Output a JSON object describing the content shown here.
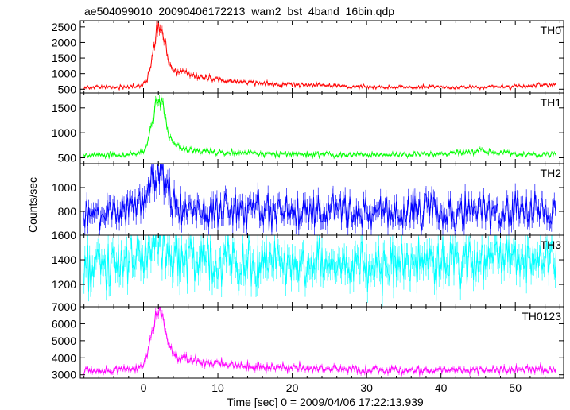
{
  "chart_data": {
    "type": "line",
    "title": "ae504099010_20090406172213_wam2_bst_4band_16bin.qdp",
    "xlabel": "Time [sec] 0 = 2009/04/06 17:22:13.939",
    "ylabel": "Counts/sec",
    "xlim": [
      -8.5,
      56.5
    ],
    "x_ticks": [
      0,
      10,
      20,
      30,
      40,
      50
    ],
    "grid": false,
    "panels": [
      {
        "name": "TH0",
        "color": "#ff0000",
        "ylim": [
          380,
          2700
        ],
        "y_ticks": [
          500,
          1000,
          1500,
          2000,
          2500
        ],
        "y_tick_labels": [
          "500",
          "1000",
          "1500",
          "2000",
          "2500"
        ],
        "x": [
          -8,
          -6,
          -4,
          -2,
          -1,
          0,
          0.5,
          1,
          1.5,
          2,
          2.5,
          3,
          3.5,
          4,
          5,
          6,
          8,
          10,
          13,
          16,
          20,
          25,
          30,
          35,
          40,
          45,
          50,
          54,
          55.5
        ],
        "y": [
          560,
          560,
          570,
          575,
          580,
          640,
          820,
          1300,
          2000,
          2550,
          2350,
          1800,
          1350,
          1150,
          1060,
          1000,
          880,
          800,
          730,
          680,
          660,
          610,
          580,
          570,
          560,
          570,
          580,
          620,
          680
        ]
      },
      {
        "name": "TH1",
        "color": "#00ff00",
        "ylim": [
          380,
          1800
        ],
        "y_ticks": [
          500,
          1000,
          1500
        ],
        "y_tick_labels": [
          "500",
          "1000",
          "1500"
        ],
        "x": [
          -8,
          -6,
          -4,
          -2,
          -1,
          0,
          0.5,
          1,
          1.5,
          2,
          2.5,
          3,
          3.5,
          4,
          5,
          6,
          8,
          10,
          13,
          16,
          20,
          25,
          30,
          35,
          40,
          45,
          50,
          54,
          55.5
        ],
        "y": [
          550,
          555,
          560,
          560,
          570,
          610,
          800,
          1150,
          1500,
          1700,
          1600,
          1250,
          950,
          800,
          700,
          670,
          630,
          610,
          600,
          580,
          570,
          560,
          560,
          560,
          570,
          620,
          580,
          560,
          570
        ]
      },
      {
        "name": "TH2",
        "color": "#0000ff",
        "ylim": [
          600,
          1200
        ],
        "y_ticks": [
          800,
          1000
        ],
        "y_tick_labels": [
          "800",
          "1000"
        ],
        "x": [
          -8,
          -6,
          -4,
          -2,
          -1,
          0,
          0.5,
          1,
          1.5,
          2,
          2.5,
          3,
          3.5,
          4,
          5,
          6,
          8,
          10,
          13,
          16,
          20,
          25,
          30,
          35,
          40,
          45,
          50,
          54,
          55.5
        ],
        "y": [
          780,
          790,
          800,
          820,
          850,
          880,
          950,
          1050,
          1100,
          1130,
          1100,
          1000,
          930,
          880,
          820,
          800,
          790,
          800,
          810,
          800,
          810,
          800,
          790,
          800,
          810,
          800,
          810,
          800,
          790
        ]
      },
      {
        "name": "TH3",
        "color": "#00ffff",
        "ylim": [
          1020,
          1600
        ],
        "y_ticks": [
          1200,
          1400,
          1600
        ],
        "y_tick_labels": [
          "1200",
          "1400",
          "1600"
        ],
        "x": [
          -8,
          -6,
          -4,
          -2,
          -1,
          0,
          0.5,
          1,
          1.5,
          2,
          2.5,
          3,
          3.5,
          4,
          5,
          6,
          8,
          10,
          13,
          16,
          20,
          25,
          30,
          35,
          40,
          45,
          50,
          54,
          55.5
        ],
        "y": [
          1300,
          1340,
          1350,
          1360,
          1380,
          1420,
          1460,
          1500,
          1520,
          1510,
          1480,
          1450,
          1420,
          1400,
          1390,
          1380,
          1380,
          1380,
          1375,
          1380,
          1385,
          1380,
          1375,
          1380,
          1385,
          1380,
          1385,
          1380,
          1375
        ]
      },
      {
        "name": "TH0123",
        "color": "#ff00ff",
        "ylim": [
          2800,
          7000
        ],
        "y_ticks": [
          3000,
          4000,
          5000,
          6000,
          7000
        ],
        "y_tick_labels": [
          "3000",
          "4000",
          "5000",
          "6000",
          "7000"
        ],
        "x": [
          -8,
          -6,
          -4,
          -2,
          -1,
          0,
          0.5,
          1,
          1.5,
          2,
          2.5,
          3,
          3.5,
          4,
          5,
          6,
          8,
          10,
          13,
          16,
          20,
          25,
          30,
          35,
          40,
          45,
          50,
          54,
          55.5
        ],
        "y": [
          3200,
          3220,
          3250,
          3300,
          3350,
          3500,
          4100,
          5300,
          6300,
          6800,
          6500,
          5600,
          4700,
          4300,
          4000,
          3900,
          3700,
          3600,
          3500,
          3450,
          3400,
          3350,
          3300,
          3280,
          3270,
          3300,
          3320,
          3300,
          3320
        ]
      }
    ]
  }
}
